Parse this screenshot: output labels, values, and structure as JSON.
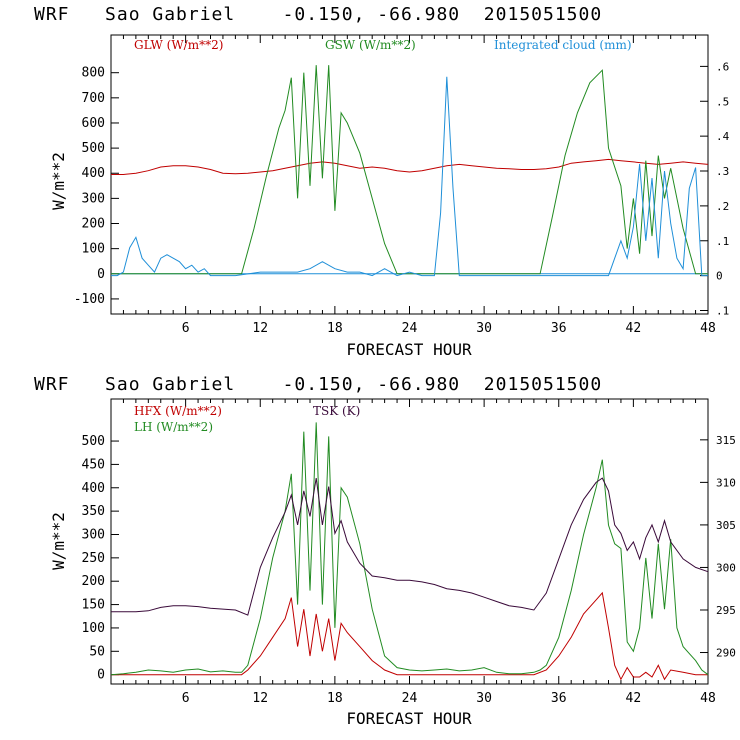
{
  "colors": {
    "red": "#c00000",
    "green": "#228b22",
    "blue": "#1f8fd8",
    "purple": "#3a0a3a",
    "axis": "#000000"
  },
  "chart_data": [
    {
      "type": "line",
      "title": "WRF   Sao Gabriel    -0.150, -66.980  2015051500",
      "xlabel": "FORECAST HOUR",
      "ylabel": "W/m**2",
      "xlim": [
        0,
        48
      ],
      "ylim": [
        -160,
        950
      ],
      "xticks": [
        6,
        12,
        18,
        24,
        30,
        36,
        42,
        48
      ],
      "yticks": [
        -100,
        0,
        100,
        200,
        300,
        400,
        500,
        600,
        700,
        800
      ],
      "y2lim": [
        -0.11,
        0.69
      ],
      "y2ticks": [
        -0.1,
        0,
        0.1,
        0.2,
        0.3,
        0.4,
        0.5,
        0.6
      ],
      "y2ticklabels": [
        ".1",
        "0",
        ".1",
        ".2",
        ".3",
        ".4",
        ".5",
        ".6"
      ],
      "legend": [
        "GLW (W/m**2)",
        "GSW (W/m**2)",
        "Integrated cloud (mm)"
      ],
      "series": [
        {
          "name": "GLW (W/m**2)",
          "color": "red",
          "axis": "left",
          "x": [
            0,
            1,
            2,
            3,
            4,
            5,
            6,
            7,
            8,
            9,
            10,
            11,
            12,
            13,
            14,
            15,
            16,
            17,
            18,
            19,
            20,
            21,
            22,
            23,
            24,
            25,
            26,
            27,
            28,
            29,
            30,
            31,
            32,
            33,
            34,
            35,
            36,
            37,
            38,
            39,
            40,
            41,
            42,
            43,
            44,
            45,
            46,
            47,
            48
          ],
          "y": [
            395,
            395,
            400,
            410,
            425,
            430,
            430,
            425,
            415,
            400,
            398,
            400,
            405,
            410,
            420,
            430,
            440,
            445,
            440,
            430,
            420,
            425,
            420,
            410,
            405,
            410,
            420,
            430,
            435,
            430,
            425,
            420,
            418,
            415,
            415,
            418,
            425,
            440,
            445,
            450,
            455,
            450,
            445,
            440,
            435,
            440,
            445,
            440,
            435
          ]
        },
        {
          "name": "GSW (W/m**2)",
          "color": "green",
          "axis": "left",
          "x": [
            0,
            10.5,
            11.5,
            12.5,
            13.5,
            14,
            14.5,
            15,
            15.5,
            16,
            16.5,
            17,
            17.5,
            18,
            18.5,
            19,
            20,
            21,
            22,
            23,
            24,
            34.5,
            35.5,
            36.5,
            37.5,
            38.5,
            39.5,
            40,
            41,
            41.5,
            42,
            42.5,
            43,
            43.5,
            44,
            44.5,
            45,
            46,
            47,
            48
          ],
          "y": [
            0,
            0,
            180,
            390,
            580,
            650,
            780,
            300,
            800,
            350,
            830,
            380,
            830,
            250,
            640,
            600,
            480,
            300,
            120,
            0,
            0,
            0,
            230,
            470,
            640,
            760,
            810,
            500,
            350,
            100,
            300,
            80,
            450,
            150,
            470,
            300,
            420,
            180,
            0,
            0
          ]
        },
        {
          "name": "Integrated cloud (mm)",
          "color": "blue",
          "axis": "right",
          "x": [
            0,
            0.5,
            1,
            1.5,
            2,
            2.5,
            3,
            3.5,
            4,
            4.5,
            5,
            5.5,
            6,
            6.5,
            7,
            7.5,
            8,
            8.5,
            9,
            10,
            12,
            15,
            16,
            17,
            18,
            19,
            20,
            21,
            22,
            23,
            24,
            25,
            26,
            26.5,
            27,
            27.5,
            28,
            28.5,
            29,
            30,
            35,
            40,
            40.5,
            41,
            41.5,
            42,
            42.5,
            43,
            43.5,
            44,
            44.5,
            45,
            45.5,
            46,
            46.5,
            47,
            47.5,
            48
          ],
          "y": [
            0,
            0,
            0.01,
            0.08,
            0.11,
            0.05,
            0.03,
            0.01,
            0.05,
            0.06,
            0.05,
            0.04,
            0.02,
            0.03,
            0.01,
            0.02,
            0.0,
            0.0,
            0.0,
            0.0,
            0.01,
            0.01,
            0.02,
            0.04,
            0.02,
            0.01,
            0.01,
            0.0,
            0.02,
            0.0,
            0.01,
            0.0,
            0.0,
            0.18,
            0.57,
            0.25,
            0.0,
            0.0,
            0.0,
            0.0,
            0.0,
            0.0,
            0.05,
            0.1,
            0.05,
            0.14,
            0.32,
            0.1,
            0.28,
            0.05,
            0.3,
            0.15,
            0.05,
            0.02,
            0.25,
            0.31,
            0.0,
            0.0
          ]
        }
      ]
    },
    {
      "type": "line",
      "title": "WRF   Sao Gabriel    -0.150, -66.980  2015051500",
      "xlabel": "FORECAST HOUR",
      "ylabel": "W/m**2",
      "xlim": [
        0,
        48
      ],
      "ylim": [
        -20,
        590
      ],
      "xticks": [
        6,
        12,
        18,
        24,
        30,
        36,
        42,
        48
      ],
      "yticks": [
        0,
        50,
        100,
        150,
        200,
        250,
        300,
        350,
        400,
        450,
        500
      ],
      "y2lim": [
        286.3,
        319.8
      ],
      "y2ticks": [
        290,
        295,
        300,
        305,
        310,
        315
      ],
      "y2ticklabels": [
        "290",
        "295",
        "300",
        "305",
        "310",
        "315"
      ],
      "legend": [
        "HFX (W/m**2)",
        "LH (W/m**2)",
        "TSK (K)"
      ],
      "series": [
        {
          "name": "HFX (W/m**2)",
          "color": "red",
          "axis": "left",
          "x": [
            0,
            10.5,
            11,
            12,
            13,
            14,
            14.5,
            15,
            15.5,
            16,
            16.5,
            17,
            17.5,
            18,
            18.5,
            19,
            20,
            21,
            22,
            23,
            24,
            34,
            35,
            36,
            37,
            38,
            39,
            39.5,
            40,
            40.5,
            41,
            41.5,
            42,
            42.5,
            43,
            43.5,
            44,
            44.5,
            45,
            46,
            47,
            48
          ],
          "y": [
            0,
            0,
            10,
            40,
            80,
            120,
            165,
            60,
            140,
            40,
            130,
            50,
            120,
            30,
            110,
            90,
            60,
            30,
            10,
            0,
            0,
            0,
            10,
            40,
            80,
            130,
            160,
            175,
            100,
            20,
            -10,
            15,
            -5,
            -5,
            5,
            -5,
            20,
            -10,
            10,
            5,
            0,
            0
          ]
        },
        {
          "name": "LH (W/m**2)",
          "color": "green",
          "axis": "left",
          "x": [
            0,
            1,
            2,
            3,
            4,
            5,
            6,
            7,
            8,
            9,
            10,
            10.5,
            11,
            12,
            13,
            14,
            14.5,
            15,
            15.5,
            16,
            16.5,
            17,
            17.5,
            18,
            18.5,
            19,
            20,
            21,
            22,
            23,
            24,
            25,
            26,
            27,
            28,
            29,
            30,
            31,
            32,
            33,
            34,
            34.5,
            35,
            36,
            37,
            38,
            39,
            39.5,
            40,
            40.5,
            41,
            41.5,
            42,
            42.5,
            43,
            43.5,
            44,
            44.5,
            45,
            45.5,
            46,
            46.5,
            47,
            47.5,
            48
          ],
          "y": [
            0,
            2,
            5,
            10,
            8,
            5,
            10,
            12,
            6,
            8,
            5,
            5,
            20,
            120,
            250,
            350,
            430,
            150,
            520,
            180,
            540,
            150,
            510,
            100,
            400,
            380,
            280,
            140,
            40,
            15,
            10,
            8,
            10,
            12,
            8,
            10,
            15,
            5,
            2,
            2,
            5,
            10,
            20,
            80,
            180,
            300,
            400,
            460,
            320,
            280,
            270,
            70,
            50,
            100,
            250,
            120,
            280,
            140,
            290,
            100,
            60,
            45,
            30,
            10,
            0
          ]
        },
        {
          "name": "TSK (K)",
          "color": "purple",
          "axis": "right",
          "x": [
            0,
            1,
            2,
            3,
            4,
            5,
            6,
            7,
            8,
            9,
            10,
            11,
            12,
            13,
            14,
            14.5,
            15,
            15.5,
            16,
            16.5,
            17,
            17.5,
            18,
            18.5,
            19,
            20,
            21,
            22,
            23,
            24,
            25,
            26,
            27,
            28,
            29,
            30,
            31,
            32,
            33,
            34,
            35,
            36,
            37,
            38,
            39,
            39.5,
            40,
            40.5,
            41,
            41.5,
            42,
            42.5,
            43,
            43.5,
            44,
            44.5,
            45,
            46,
            47,
            48
          ],
          "y": [
            294.8,
            294.8,
            294.8,
            294.9,
            295.3,
            295.5,
            295.5,
            295.4,
            295.2,
            295.1,
            295.0,
            294.4,
            300.0,
            303.5,
            306.5,
            308.5,
            305.0,
            309.0,
            306.0,
            310.5,
            305.0,
            309.5,
            304.0,
            305.5,
            303.0,
            300.5,
            299.0,
            298.8,
            298.5,
            298.5,
            298.3,
            298.0,
            297.5,
            297.3,
            297.0,
            296.5,
            296.0,
            295.5,
            295.3,
            295.0,
            297.0,
            301.0,
            305.0,
            308.0,
            310.0,
            310.5,
            309.0,
            305.0,
            304.0,
            302.0,
            303.0,
            301.0,
            303.5,
            305.0,
            303.0,
            305.5,
            303.0,
            301.0,
            300.0,
            299.5
          ]
        }
      ]
    }
  ]
}
